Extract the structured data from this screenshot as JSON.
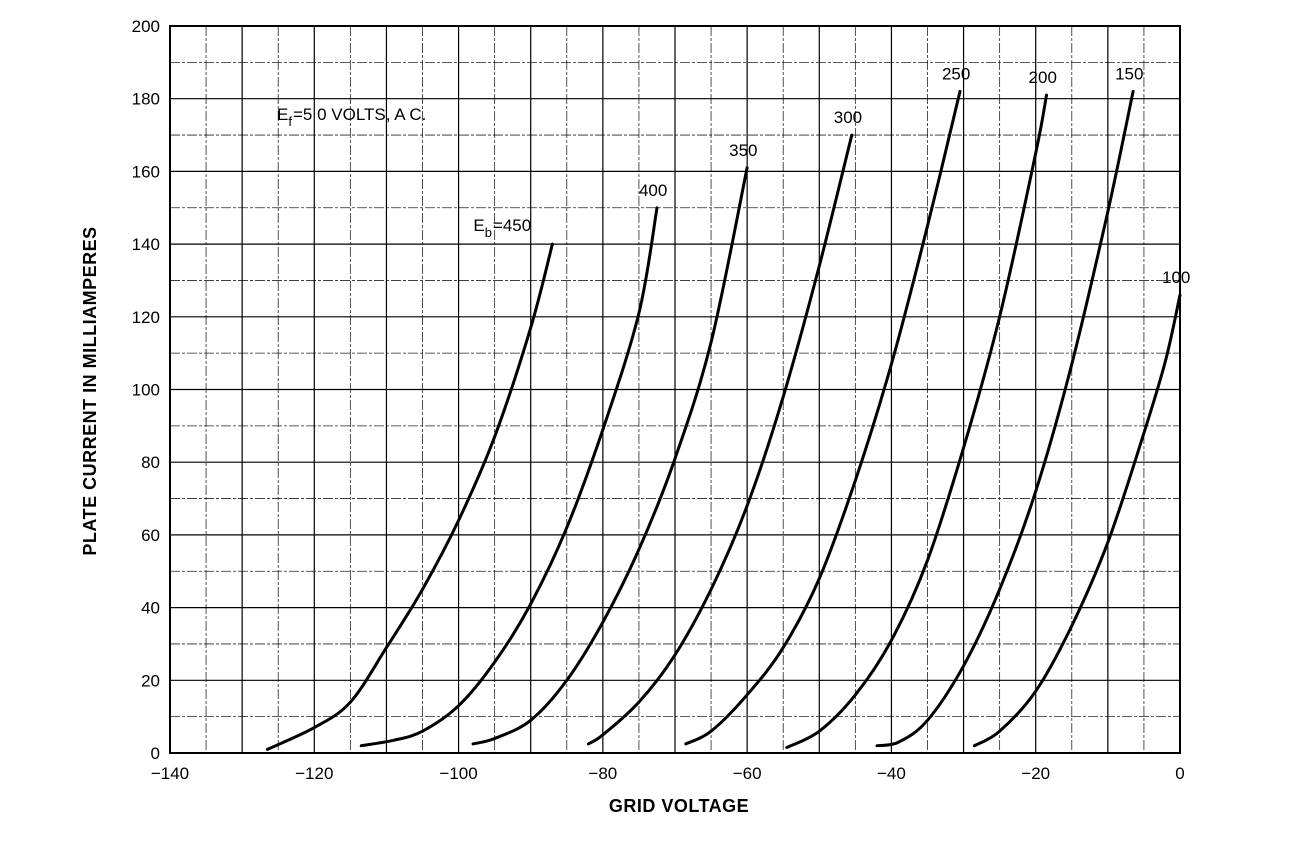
{
  "chart_data": {
    "type": "line",
    "xlabel": "GRID VOLTAGE",
    "ylabel": "PLATE CURRENT IN MILLIAMPERES",
    "xlim": [
      -140,
      0
    ],
    "ylim": [
      0,
      200
    ],
    "x_ticks": [
      -140,
      -120,
      -100,
      -80,
      -60,
      -40,
      -20,
      0
    ],
    "x_tick_labels": [
      "−140",
      "−120",
      "−100",
      "−80",
      "−60",
      "−40",
      "−20",
      "0"
    ],
    "y_ticks": [
      0,
      20,
      40,
      60,
      80,
      100,
      120,
      140,
      160,
      180,
      200
    ],
    "y_tick_labels": [
      "0",
      "20",
      "40",
      "60",
      "80",
      "100",
      "120",
      "140",
      "160",
      "180",
      "200"
    ],
    "grid": true,
    "annotation": {
      "main": "E",
      "sub": "f",
      "rest": "=5 0  VOLTS, A C."
    },
    "series": [
      {
        "name": "450",
        "label_prefix": {
          "main": "E",
          "sub": "b",
          "rest": "=450"
        },
        "x": [
          -126.5,
          -120,
          -115,
          -110,
          -105,
          -100,
          -95,
          -90,
          -87
        ],
        "y": [
          1,
          7,
          14,
          29,
          45,
          64,
          87,
          117,
          140
        ]
      },
      {
        "name": "400",
        "x": [
          -113.5,
          -109,
          -105,
          -100,
          -95,
          -90,
          -85,
          -80,
          -75,
          -72.5
        ],
        "y": [
          2,
          3.5,
          6,
          13,
          25,
          41,
          62,
          89,
          121,
          150
        ]
      },
      {
        "name": "350",
        "x": [
          -98,
          -95,
          -90,
          -85,
          -80,
          -75,
          -70,
          -65,
          -60
        ],
        "y": [
          2.5,
          4,
          9,
          20,
          36,
          56,
          81,
          113,
          161
        ]
      },
      {
        "name": "300",
        "x": [
          -82,
          -80,
          -75,
          -70,
          -65,
          -60,
          -55,
          -50,
          -45.5
        ],
        "y": [
          2.5,
          5,
          14,
          27,
          45,
          68,
          98,
          134,
          170
        ]
      },
      {
        "name": "250",
        "x": [
          -68.5,
          -65,
          -60,
          -55,
          -50,
          -45,
          -40,
          -35,
          -30.5
        ],
        "y": [
          2.5,
          6,
          16,
          29,
          48,
          75,
          107,
          145,
          182
        ]
      },
      {
        "name": "200",
        "x": [
          -54.5,
          -50,
          -45,
          -40,
          -35,
          -30,
          -25,
          -20,
          -18.5
        ],
        "y": [
          1.5,
          6,
          16,
          31,
          53,
          84,
          120,
          165,
          181
        ]
      },
      {
        "name": "150",
        "x": [
          -42,
          -39,
          -35,
          -30,
          -25,
          -20,
          -15,
          -10,
          -6.5
        ],
        "y": [
          2,
          3,
          9,
          24,
          45,
          72,
          107,
          149,
          182
        ]
      },
      {
        "name": "100",
        "x": [
          -28.5,
          -25,
          -20,
          -15,
          -10,
          -5,
          -2,
          0
        ],
        "y": [
          2,
          6,
          17,
          35,
          58,
          88,
          108,
          126
        ]
      }
    ]
  }
}
